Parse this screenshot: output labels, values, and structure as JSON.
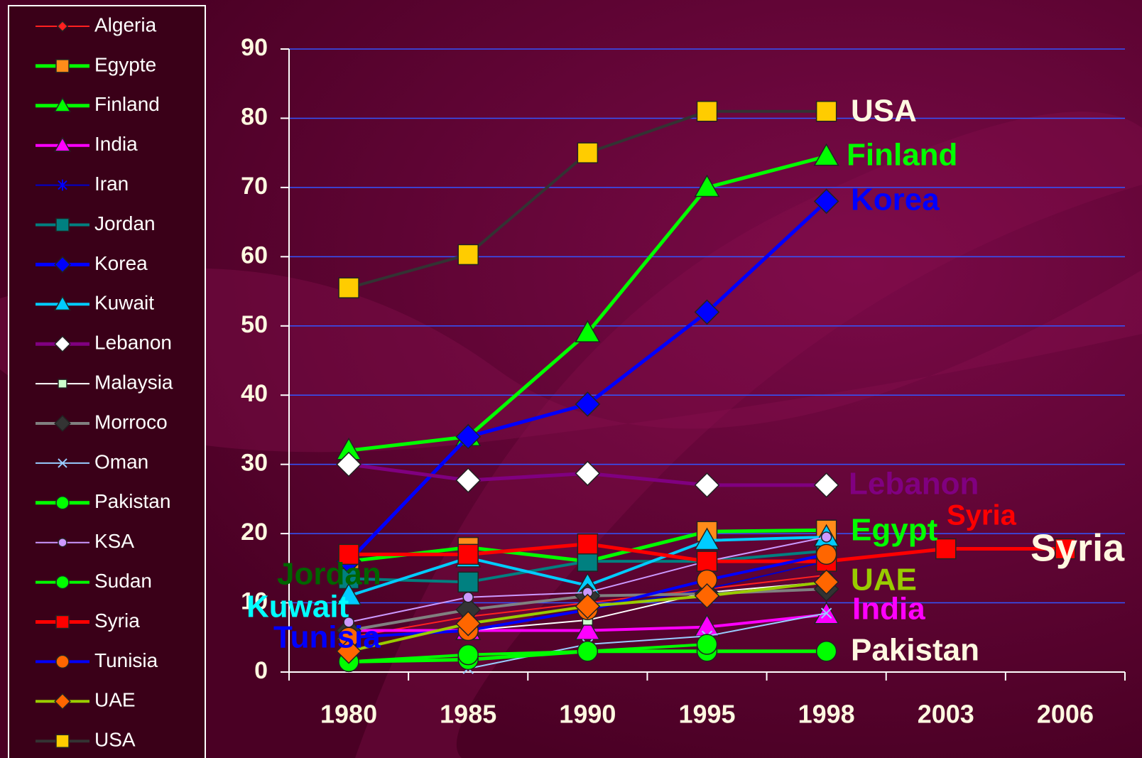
{
  "chart_data": {
    "type": "line",
    "categories": [
      "1980",
      "1985",
      "1990",
      "1995",
      "1998",
      "2003",
      "2006"
    ],
    "ylim": [
      0,
      90
    ],
    "yticks": [
      0,
      10,
      20,
      30,
      40,
      50,
      60,
      70,
      80,
      90
    ],
    "grid": true,
    "grid_color": "#3355ff",
    "legend": "left",
    "series": [
      {
        "name": "Algeria",
        "color": "#ff2020",
        "marker": "diamond",
        "marker_color": "#ff2020",
        "line_width": 2,
        "values": [
          5,
          8,
          10,
          12,
          14,
          null,
          null
        ]
      },
      {
        "name": "Egypte",
        "color": "#00ff00",
        "marker": "square",
        "marker_color": "#ff8c1a",
        "line_width": 5,
        "values": [
          16,
          18,
          16,
          20.3,
          20.5,
          null,
          null
        ]
      },
      {
        "name": "Finland",
        "color": "#00ff00",
        "marker": "triangle",
        "marker_color": "#00ff00",
        "line_width": 5,
        "values": [
          32,
          34,
          49,
          70,
          74.5,
          null,
          null
        ]
      },
      {
        "name": "India",
        "color": "#ff00ff",
        "marker": "triangle",
        "marker_color": "#ff00ff",
        "line_width": 4,
        "values": [
          6,
          6,
          6,
          6.5,
          8.3,
          null,
          null
        ]
      },
      {
        "name": "Iran",
        "color": "#0000cc",
        "marker": "asterisk",
        "marker_color": "#0000ff",
        "line_width": 2,
        "values": [
          5,
          6,
          9,
          12,
          16,
          null,
          null
        ]
      },
      {
        "name": "Jordan",
        "color": "#008080",
        "marker": "square",
        "marker_color": "#008080",
        "line_width": 4,
        "values": [
          13.5,
          13,
          16,
          16,
          17.5,
          null,
          null
        ]
      },
      {
        "name": "Korea",
        "color": "#0000ff",
        "marker": "diamond",
        "marker_color": "#0000ff",
        "line_width": 5,
        "values": [
          16,
          34,
          38.7,
          52,
          68,
          null,
          null
        ]
      },
      {
        "name": "Kuwait",
        "color": "#00ccff",
        "marker": "triangle",
        "marker_color": "#00ccff",
        "line_width": 4,
        "values": [
          11,
          16.5,
          12.5,
          19,
          19.5,
          null,
          null
        ]
      },
      {
        "name": "Lebanon",
        "color": "#800080",
        "marker": "diamond",
        "marker_color": "#ffffff",
        "line_width": 5,
        "values": [
          30,
          27.7,
          28.7,
          27,
          27,
          null,
          null
        ]
      },
      {
        "name": "Malaysia",
        "color": "#ffffff",
        "marker": "square",
        "marker_color": "#ccffcc",
        "line_width": 2,
        "values": [
          5,
          6,
          7.5,
          11.5,
          13,
          null,
          null
        ]
      },
      {
        "name": "Morroco",
        "color": "#808080",
        "marker": "diamond",
        "marker_color": "#333333",
        "line_width": 4,
        "values": [
          6,
          9,
          11,
          11.3,
          12,
          null,
          null
        ]
      },
      {
        "name": "Oman",
        "color": "#99ccff",
        "marker": "x",
        "marker_color": "#99ccff",
        "line_width": 2,
        "values": [
          null,
          0.5,
          4,
          5.2,
          8.5,
          null,
          null
        ]
      },
      {
        "name": "Pakistan",
        "color": "#00ff00",
        "marker": "circle",
        "marker_color": "#00ff00",
        "line_width": 5,
        "values": [
          1.5,
          1.8,
          3,
          3,
          3,
          null,
          null
        ]
      },
      {
        "name": "KSA",
        "color": "#cc99ff",
        "marker": "circle",
        "marker_color": "#cc99ff",
        "line_width": 2,
        "values": [
          7.2,
          10.8,
          11.5,
          16,
          19.5,
          null,
          null
        ]
      },
      {
        "name": "Sudan",
        "color": "#00ff00",
        "marker": "circle",
        "marker_color": "#00ff00",
        "line_width": 4,
        "values": [
          1.5,
          2.5,
          3,
          4,
          null,
          null,
          null
        ]
      },
      {
        "name": "Syria",
        "color": "#ff0000",
        "marker": "square",
        "marker_color": "#ff0000",
        "line_width": 5,
        "values": [
          17,
          17,
          18.5,
          16,
          16,
          17.8,
          17.8
        ]
      },
      {
        "name": "Tunisia",
        "color": "#0000ff",
        "marker": "circle",
        "marker_color": "#ff6600",
        "line_width": 4,
        "values": [
          5,
          6,
          9,
          13.3,
          17,
          null,
          null
        ]
      },
      {
        "name": "UAE",
        "color": "#99cc00",
        "marker": "diamond",
        "marker_color": "#ff6600",
        "line_width": 4,
        "values": [
          3,
          7,
          9.5,
          11,
          13,
          null,
          null
        ]
      },
      {
        "name": "USA",
        "color": "#333333",
        "marker": "square",
        "marker_color": "#ffcc00",
        "line_width": 4,
        "values": [
          55.5,
          60.3,
          75,
          81,
          81,
          null,
          null
        ]
      }
    ],
    "annotations": [
      {
        "text": "USA",
        "color": "#fff8e0"
      },
      {
        "text": "Finland",
        "color": "#00ff00"
      },
      {
        "text": "Korea",
        "color": "#0000ff"
      },
      {
        "text": "Lebanon",
        "color": "#800080"
      },
      {
        "text": "Egypt",
        "color": "#00ff00"
      },
      {
        "text": "Syria",
        "color": "#ff0000"
      },
      {
        "text": "Syria",
        "color": "#fff8e0"
      },
      {
        "text": "UAE",
        "color": "#99cc00"
      },
      {
        "text": "India",
        "color": "#ff00ff"
      },
      {
        "text": "Pakistan",
        "color": "#fff8e0"
      },
      {
        "text": "Jordan",
        "color": "#006400"
      },
      {
        "text": "Kuwait",
        "color": "#00ffff"
      },
      {
        "text": "Tunisia",
        "color": "#0000ff"
      }
    ]
  }
}
